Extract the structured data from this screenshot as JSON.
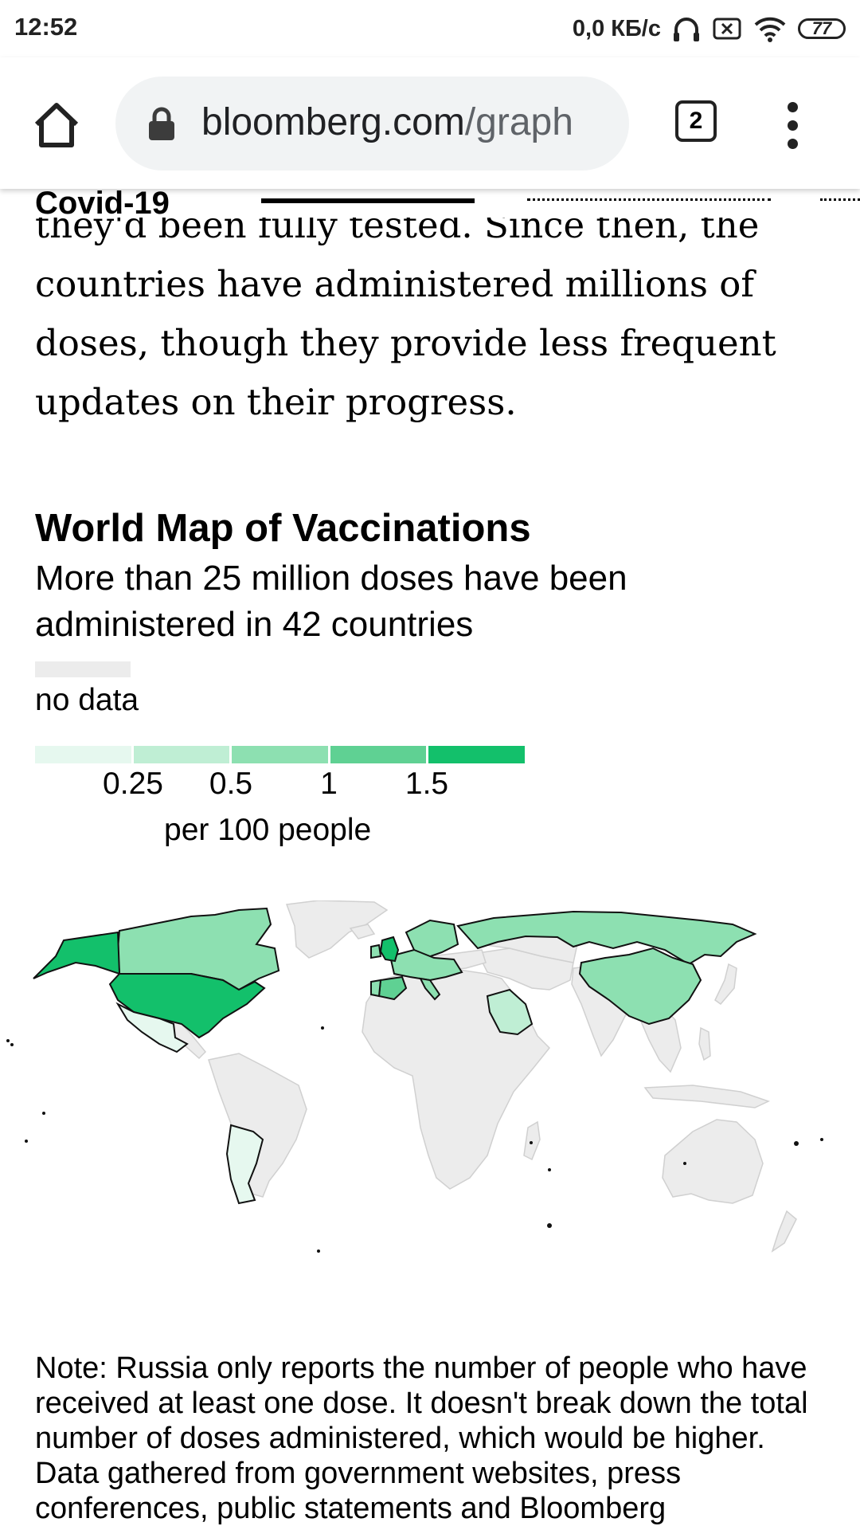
{
  "status_bar": {
    "time": "12:52",
    "network_speed": "0,0 КБ/с",
    "battery": "77"
  },
  "browser": {
    "url_domain": "bloomberg.com",
    "url_path": "/graph",
    "tab_count": "2"
  },
  "sub_header": {
    "section": "Covid-19"
  },
  "article": {
    "lines": [
      "they'd been fully tested. Since then, the",
      "countries have administered millions of",
      "doses, though they provide less frequent",
      "updates on their progress."
    ]
  },
  "chart": {
    "title": "World Map of Vaccinations",
    "subtitle": "More than 25 million doses have been administered in 42 countries",
    "no_data_label": "no data",
    "no_data_color": "#ececec",
    "scale_colors": [
      "#e6f8ef",
      "#bfeed4",
      "#8de0b1",
      "#5fd193",
      "#13c06b"
    ],
    "ticks": [
      "0.25",
      "0.5",
      "1",
      "1.5"
    ],
    "unit": "per 100 people"
  },
  "chart_data": {
    "type": "choropleth",
    "title": "World Map of Vaccinations",
    "subtitle": "More than 25 million doses have been administered in 42 countries",
    "legend_unit": "per 100 people",
    "legend_breaks": [
      0.25,
      0.5,
      1,
      1.5
    ],
    "no_data_label": "no data",
    "regions": [
      {
        "name": "United States",
        "bin": 4
      },
      {
        "name": "Alaska",
        "bin": 4
      },
      {
        "name": "Canada",
        "bin": 2
      },
      {
        "name": "Mexico",
        "bin": 0
      },
      {
        "name": "Argentina",
        "bin": 0
      },
      {
        "name": "Chile",
        "bin": 0
      },
      {
        "name": "Russia",
        "bin": 2
      },
      {
        "name": "China",
        "bin": 2
      },
      {
        "name": "Saudi Arabia",
        "bin": 1
      },
      {
        "name": "United Kingdom",
        "bin": 4
      },
      {
        "name": "Spain",
        "bin": 3
      },
      {
        "name": "Portugal",
        "bin": 2
      },
      {
        "name": "Europe (other reporting countries)",
        "bin": 2
      }
    ]
  },
  "note": "Note: Russia only reports the number of people who have received at least one dose. It doesn't break down the total number of doses administered, which would be higher. Data gathered from government websites, press conferences, public statements and Bloomberg"
}
